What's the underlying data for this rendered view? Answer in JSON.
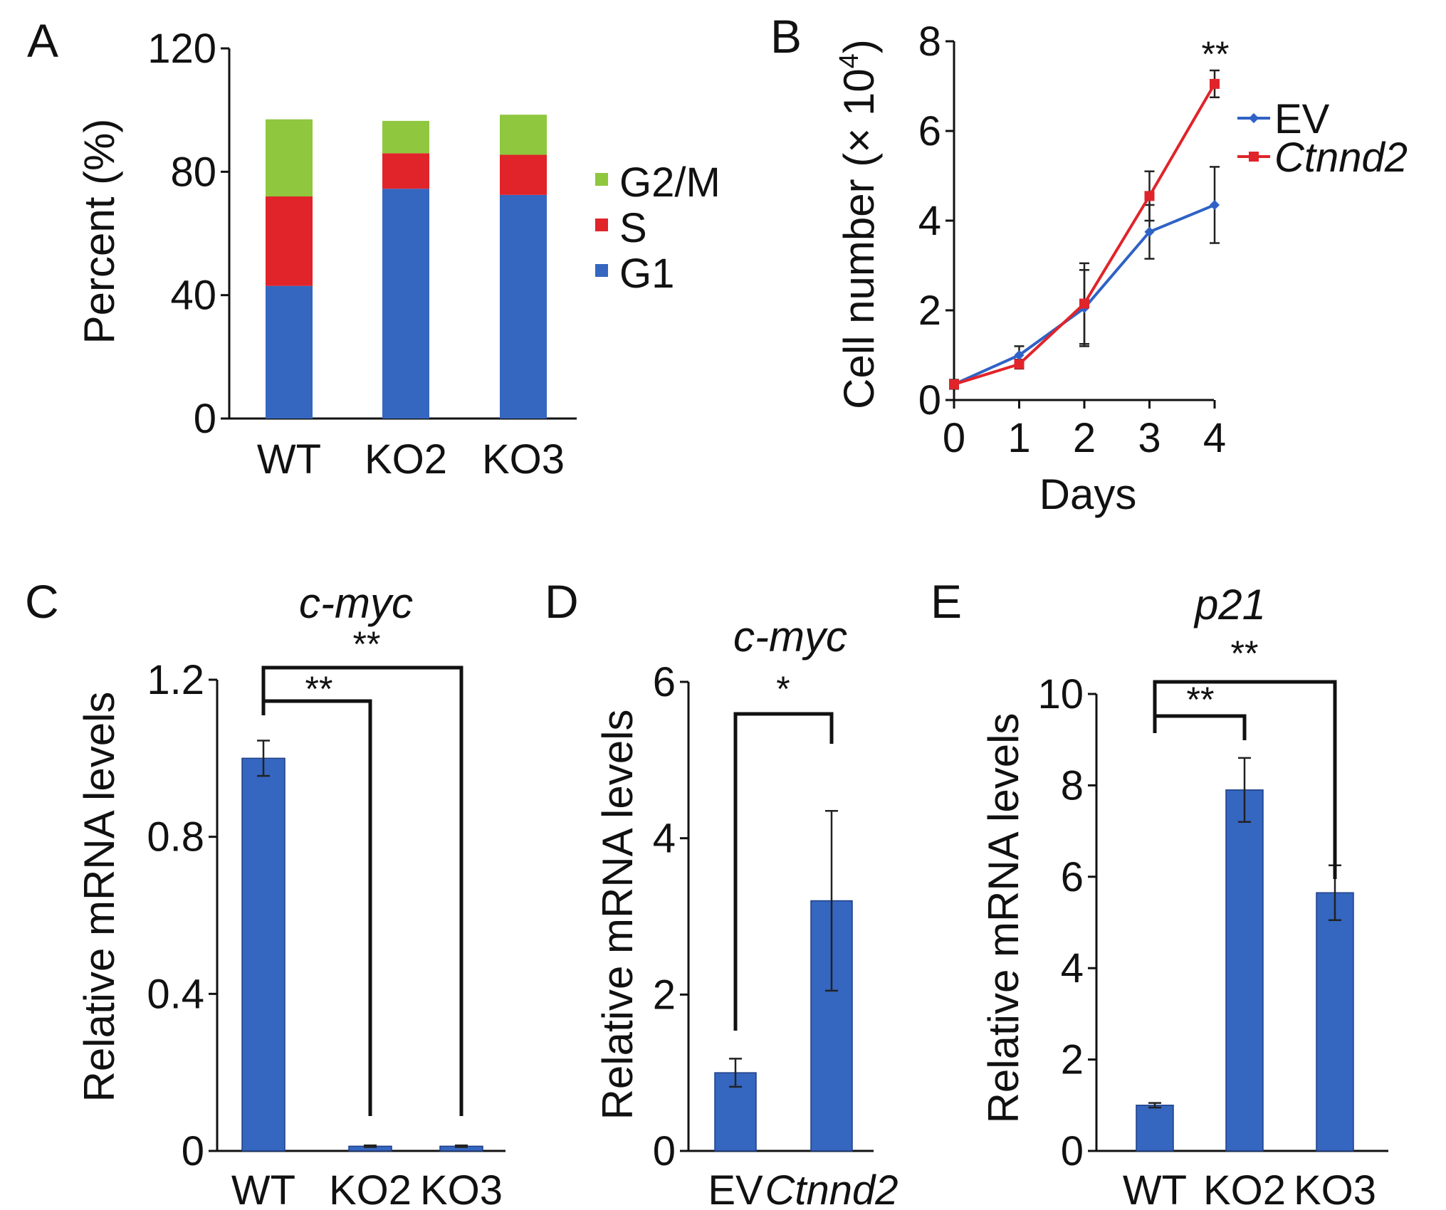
{
  "colors": {
    "g1": "#3566c0",
    "s": "#e0242a",
    "g2m": "#8fc73e",
    "ev": "#2f62c6",
    "ctnnd2": "#e0242a",
    "bar": "#3566c0",
    "error": "#222222"
  },
  "chart_data": [
    {
      "panel": "A",
      "type": "bar",
      "stacked": true,
      "categories": [
        "WT",
        "KO2",
        "KO3"
      ],
      "series": [
        {
          "name": "G1",
          "values": [
            43,
            74.5,
            72.5
          ]
        },
        {
          "name": "S",
          "values": [
            29,
            11.5,
            13
          ]
        },
        {
          "name": "G2/M",
          "values": [
            25,
            10.5,
            13
          ]
        }
      ],
      "legend": [
        "G2/M",
        "S",
        "G1"
      ],
      "ylabel": "Percent (%)",
      "yticks": [
        "0",
        "40",
        "80",
        "120"
      ],
      "ylim": [
        0,
        120
      ]
    },
    {
      "panel": "B",
      "type": "line",
      "x": [
        0,
        1,
        2,
        3,
        4
      ],
      "xticks": [
        "0",
        "1",
        "2",
        "3",
        "4"
      ],
      "series": [
        {
          "name": "EV",
          "values": [
            0.35,
            1.0,
            2.05,
            3.75,
            4.35
          ],
          "err": [
            0.1,
            0.2,
            0.85,
            0.6,
            0.85
          ]
        },
        {
          "name": "Ctnnd2",
          "values": [
            0.35,
            0.8,
            2.15,
            4.55,
            7.05
          ],
          "err": [
            0.1,
            0.1,
            0.9,
            0.55,
            0.3
          ]
        }
      ],
      "xlabel": "Days",
      "ylabel_prefix": "Cell number (",
      "ylabel_times": "×",
      "ylabel_base": " 10",
      "ylabel_exp": "4",
      "ylabel_suffix": ")",
      "yticks": [
        "0",
        "2",
        "4",
        "6",
        "8"
      ],
      "ylim": [
        0,
        8
      ],
      "annotation": "**"
    },
    {
      "panel": "C",
      "type": "bar",
      "title": "c-myc",
      "categories": [
        "WT",
        "KO2",
        "KO3"
      ],
      "values": [
        1.0,
        0.012,
        0.012
      ],
      "err": [
        0.045,
        0.002,
        0.002
      ],
      "ylabel": "Relative mRNA levels",
      "yticks": [
        "0",
        "0.4",
        "0.8",
        "1.2"
      ],
      "ylim": [
        0,
        1.2
      ],
      "significance": [
        "**",
        "**"
      ]
    },
    {
      "panel": "D",
      "type": "bar",
      "title": "c-myc",
      "categories": [
        "EV",
        "Ctnnd2"
      ],
      "values": [
        1.0,
        3.2
      ],
      "err": [
        0.18,
        1.15
      ],
      "ylabel": "Relative mRNA levels",
      "yticks": [
        "0",
        "2",
        "4",
        "6"
      ],
      "ylim": [
        0,
        6
      ],
      "significance": [
        "*"
      ]
    },
    {
      "panel": "E",
      "type": "bar",
      "title": "p21",
      "categories": [
        "WT",
        "KO2",
        "KO3"
      ],
      "values": [
        1.0,
        7.9,
        5.65
      ],
      "err": [
        0.05,
        0.7,
        0.6
      ],
      "ylabel": "Relative mRNA levels",
      "yticks": [
        "0",
        "2",
        "4",
        "6",
        "8",
        "10"
      ],
      "ylim": [
        0,
        10
      ],
      "significance": [
        "**",
        "**"
      ]
    }
  ]
}
